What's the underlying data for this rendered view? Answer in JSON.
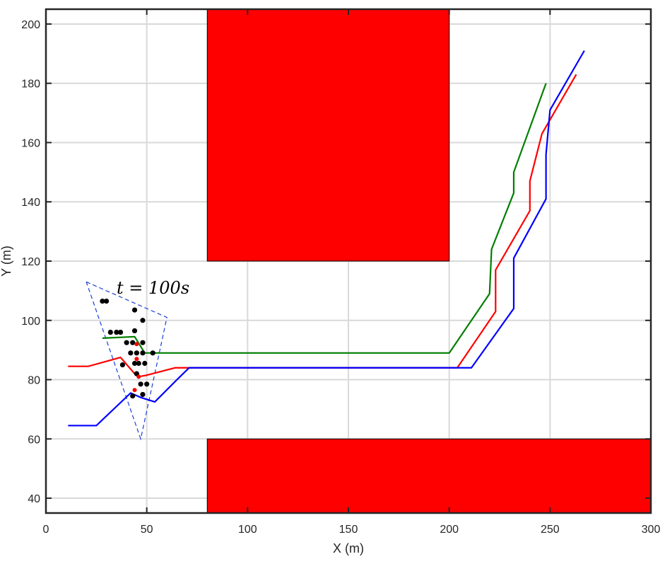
{
  "chart_data": {
    "type": "scatter",
    "title": "",
    "xlabel": "X (m)",
    "ylabel": "Y (m)",
    "xlim": [
      0,
      300
    ],
    "ylim": [
      35,
      205
    ],
    "xticks": [
      0,
      50,
      100,
      150,
      200,
      250,
      300
    ],
    "yticks": [
      40,
      60,
      80,
      100,
      120,
      140,
      160,
      180,
      200
    ],
    "grid": true,
    "annotation": "t = 100s",
    "colors": {
      "obstacle": "#ff0000",
      "green": "#007f00",
      "red": "#ff0000",
      "blue": "#0000ff",
      "points": "#000000",
      "cone": "#1a3fd6"
    },
    "obstacles": [
      {
        "x": [
          80,
          200
        ],
        "y": [
          120,
          205
        ]
      },
      {
        "x": [
          80,
          300
        ],
        "y": [
          35,
          60
        ]
      }
    ],
    "series": [
      {
        "color": "green",
        "x": [
          28,
          44,
          49,
          200,
          220,
          221,
          232,
          232,
          248
        ],
        "y": [
          94,
          94.5,
          89,
          89,
          109,
          124,
          143,
          150,
          180
        ]
      },
      {
        "color": "red",
        "x": [
          11,
          21,
          37,
          44,
          46,
          50,
          64,
          204,
          223,
          223,
          240,
          240,
          246,
          263
        ],
        "y": [
          84.5,
          84.5,
          87.5,
          82,
          81,
          81.5,
          84,
          84,
          103,
          117,
          137,
          147,
          163,
          183
        ]
      },
      {
        "color": "blue",
        "x": [
          11,
          25,
          42,
          47,
          54,
          65,
          71,
          200,
          211,
          232,
          232,
          248,
          248,
          250,
          267
        ],
        "y": [
          64.5,
          64.5,
          75.5,
          74,
          72.5,
          80,
          84,
          84,
          84,
          104,
          121,
          141,
          156,
          171,
          191
        ]
      }
    ],
    "cone": {
      "x": [
        20,
        60,
        47,
        20
      ],
      "y": [
        113,
        101,
        60,
        113
      ]
    },
    "points": {
      "x": [
        28,
        30,
        32,
        35,
        37,
        44,
        48,
        44,
        40,
        43,
        48,
        42,
        45,
        48,
        53,
        38,
        44,
        46,
        49,
        45,
        47,
        50,
        43,
        48
      ],
      "y": [
        106.5,
        106.5,
        96,
        96,
        96,
        103.5,
        100,
        96.5,
        92.5,
        92.5,
        92.5,
        89,
        89,
        89,
        89,
        85,
        85.5,
        85.5,
        85.5,
        82,
        78.5,
        78.5,
        74.5,
        75
      ]
    },
    "highlight_points": {
      "x": [
        45,
        45,
        46,
        44
      ],
      "y": [
        92,
        87,
        81,
        76.5
      ]
    }
  }
}
